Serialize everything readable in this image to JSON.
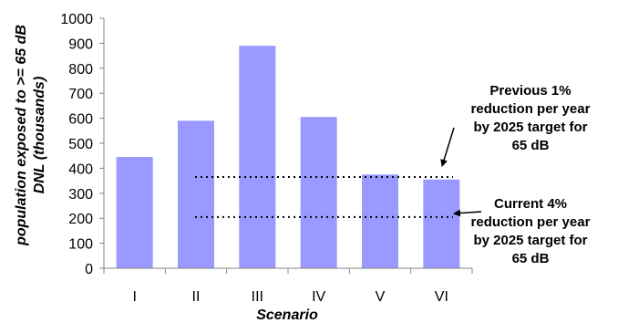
{
  "chart_data": {
    "type": "bar",
    "categories": [
      "I",
      "II",
      "III",
      "IV",
      "V",
      "VI"
    ],
    "values": [
      445,
      590,
      890,
      605,
      375,
      355
    ],
    "xlabel": "Scenario",
    "ylabel": [
      "population exposed to >= 65 dB",
      "DNL (thousands)"
    ],
    "ylim": [
      0,
      1000
    ],
    "ytick_step": 100,
    "grid": false,
    "bar_color": "#9999ff",
    "reference_lines": [
      {
        "value": 365,
        "style": "dotted",
        "label_lines": [
          "Previous 1%",
          "reduction per year",
          "by 2025 target for",
          "65 dB"
        ]
      },
      {
        "value": 205,
        "style": "dotted",
        "label_lines": [
          "Current 4%",
          "reduction per year",
          "by 2025 target for",
          "65 dB"
        ]
      }
    ]
  }
}
